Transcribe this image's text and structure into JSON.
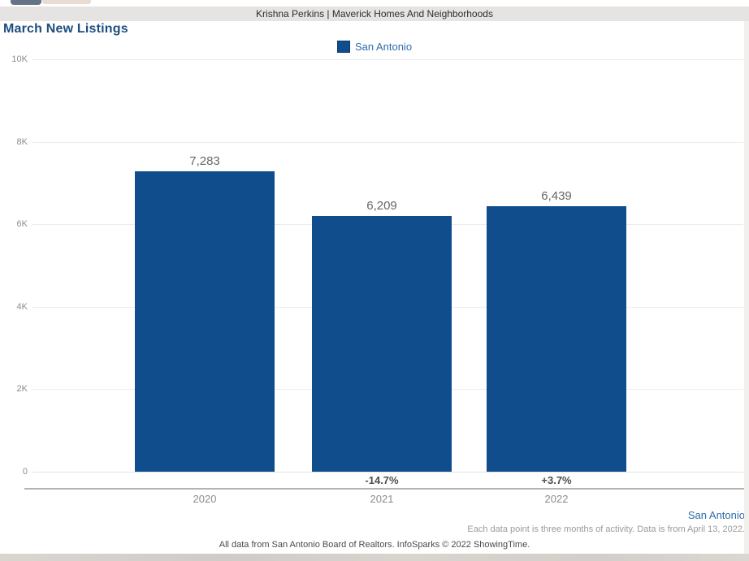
{
  "header": {
    "title": "Krishna Perkins | Maverick Homes And Neighborhoods"
  },
  "page": {
    "title": "March New Listings"
  },
  "legend": {
    "label": "San Antonio",
    "swatch_color": "#0f4d8d"
  },
  "chart_data": {
    "type": "bar",
    "title": "March New Listings",
    "categories": [
      "2020",
      "2021",
      "2022"
    ],
    "series": [
      {
        "name": "San Antonio",
        "values": [
          7283,
          6209,
          6439
        ],
        "value_labels": [
          "7,283",
          "6,209",
          "6,439"
        ],
        "pct_change_labels": [
          "",
          "-14.7%",
          "+3.7%"
        ],
        "color": "#0f4d8d"
      }
    ],
    "xlabel": "",
    "ylabel": "",
    "ylim": [
      0,
      10000
    ],
    "yticks": [
      {
        "label": "10K",
        "value": 10000
      },
      {
        "label": "8K",
        "value": 8000
      },
      {
        "label": "6K",
        "value": 6000
      },
      {
        "label": "4K",
        "value": 4000
      },
      {
        "label": "2K",
        "value": 2000
      },
      {
        "label": "0",
        "value": 0
      }
    ],
    "grid": true,
    "legend_position": "top-center"
  },
  "footer": {
    "series_label": "San Antonio",
    "note_right": "Each data point is three months of activity. Data is from April 13, 2022.",
    "note_bottom": "All data from San Antonio Board of Realtors. InfoSparks © 2022 ShowingTime."
  }
}
